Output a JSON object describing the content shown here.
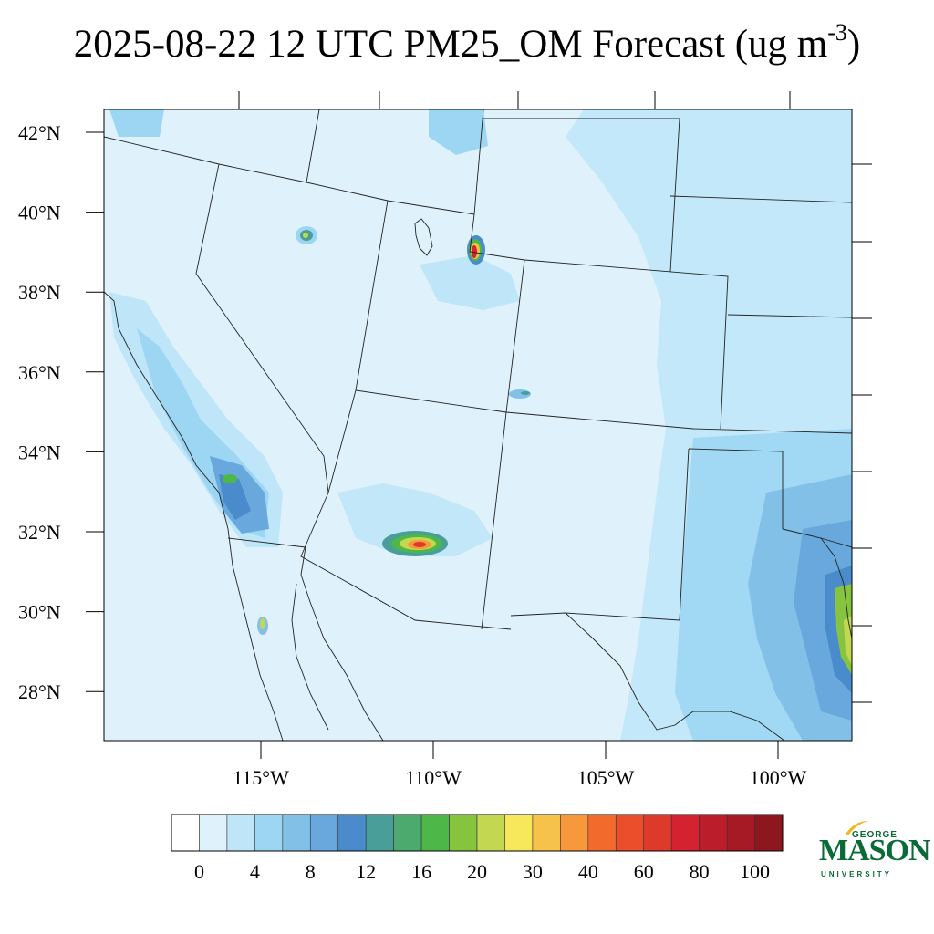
{
  "title": {
    "main": "2025-08-22 12 UTC PM25_OM Forecast (ug m",
    "sup": "-3",
    "close": ")"
  },
  "map": {
    "lat_labels": [
      "42°N",
      "40°N",
      "38°N",
      "36°N",
      "34°N",
      "32°N",
      "30°N",
      "28°N"
    ],
    "lon_labels": [
      "115°W",
      "110°W",
      "105°W",
      "100°W"
    ],
    "lat_values": [
      42,
      40,
      38,
      36,
      34,
      32,
      30,
      28
    ],
    "lon_values": [
      -115,
      -110,
      -105,
      -100
    ],
    "background_color": "#dff2fb",
    "hotspots": [
      {
        "lon": -110.6,
        "lat": 31.7,
        "peak": 60
      },
      {
        "lon": -108.8,
        "lat": 39.1,
        "peak": 80
      },
      {
        "lon": -116.1,
        "lat": 33.3,
        "peak": 16
      },
      {
        "lon": -113.6,
        "lat": 39.6,
        "peak": 20
      },
      {
        "lon": -107.3,
        "lat": 35.4,
        "peak": 12
      },
      {
        "lon": -115.0,
        "lat": 29.5,
        "peak": 20
      },
      {
        "lon": -98.0,
        "lat": 29.8,
        "peak": 25
      }
    ]
  },
  "colorbar": {
    "labels": [
      "0",
      "4",
      "8",
      "12",
      "16",
      "20",
      "30",
      "40",
      "60",
      "80",
      "100"
    ],
    "colors": [
      "#ffffff",
      "#dff2fb",
      "#bee6f8",
      "#9dd6f3",
      "#82c0e8",
      "#68a8dc",
      "#4a8ccb",
      "#4a9e99",
      "#4daa6e",
      "#4db848",
      "#86c440",
      "#c3d850",
      "#f6e85a",
      "#f7c24a",
      "#f7993b",
      "#f26b2c",
      "#ea4e2b",
      "#de3a2b",
      "#d42230",
      "#bc1d2a",
      "#a51a25",
      "#8e161f"
    ]
  },
  "logo": {
    "top": "GEORGE",
    "mid": "MASON",
    "bottom": "UNIVERSITY"
  }
}
